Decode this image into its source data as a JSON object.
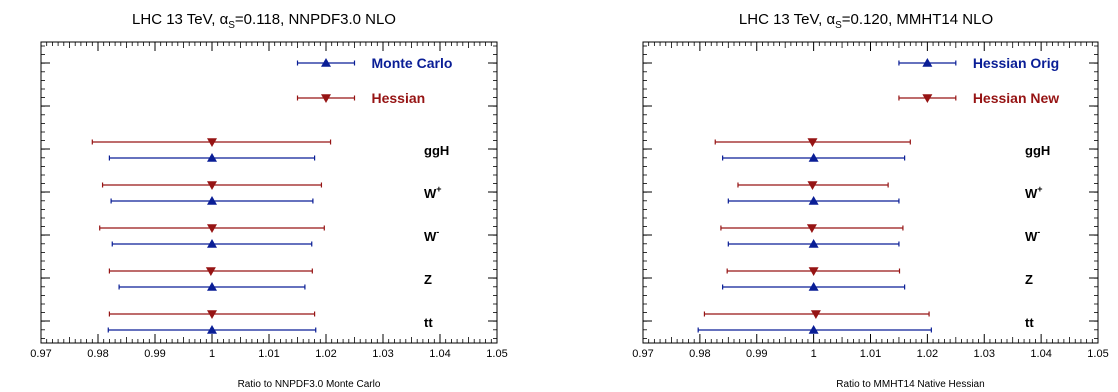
{
  "chart_data": [
    {
      "type": "errorbar",
      "title": "LHC 13 TeV, α",
      "title_sub": "S",
      "title_rest": "=0.118, NNPDF3.0 NLO",
      "xlabel": "Ratio to NNPDF3.0 Monte Carlo",
      "xlim": [
        0.97,
        1.05
      ],
      "x_ticks": [
        "0.97",
        "0.98",
        "0.99",
        "1",
        "1.01",
        "1.02",
        "1.03",
        "1.04",
        "1.05"
      ],
      "processes": [
        {
          "label": "ggH",
          "sup": ""
        },
        {
          "label": "W",
          "sup": "+"
        },
        {
          "label": "W",
          "sup": "-"
        },
        {
          "label": "Z",
          "sup": ""
        },
        {
          "label": "tt",
          "sup": ""
        }
      ],
      "legend_position": "top-right",
      "series": [
        {
          "name": "Monte Carlo",
          "color": "#0a1e96",
          "marker": "triangle-up",
          "points": [
            {
              "center": 1.0,
              "low": 0.982,
              "high": 1.018
            },
            {
              "center": 1.0,
              "low": 0.9823,
              "high": 1.0177
            },
            {
              "center": 1.0,
              "low": 0.9825,
              "high": 1.0175
            },
            {
              "center": 1.0,
              "low": 0.9837,
              "high": 1.0163
            },
            {
              "center": 1.0,
              "low": 0.9818,
              "high": 1.0182
            }
          ]
        },
        {
          "name": "Hessian",
          "color": "#961414",
          "marker": "triangle-down",
          "points": [
            {
              "center": 1.0,
              "low": 0.979,
              "high": 1.0208
            },
            {
              "center": 1.0,
              "low": 0.9808,
              "high": 1.0192
            },
            {
              "center": 1.0,
              "low": 0.9803,
              "high": 1.0197
            },
            {
              "center": 0.9998,
              "low": 0.982,
              "high": 1.0176
            },
            {
              "center": 1.0,
              "low": 0.982,
              "high": 1.018
            }
          ]
        }
      ]
    },
    {
      "type": "errorbar",
      "title": "LHC 13 TeV, α",
      "title_sub": "S",
      "title_rest": "=0.120, MMHT14 NLO",
      "xlabel": "Ratio to MMHT14 Native Hessian",
      "xlim": [
        0.97,
        1.05
      ],
      "x_ticks": [
        "0.97",
        "0.98",
        "0.99",
        "1",
        "1.01",
        "1.02",
        "1.03",
        "1.04",
        "1.05"
      ],
      "processes": [
        {
          "label": "ggH",
          "sup": ""
        },
        {
          "label": "W",
          "sup": "+"
        },
        {
          "label": "W",
          "sup": "-"
        },
        {
          "label": "Z",
          "sup": ""
        },
        {
          "label": "tt",
          "sup": ""
        }
      ],
      "legend_position": "top-right",
      "series": [
        {
          "name": "Hessian Orig",
          "color": "#0a1e96",
          "marker": "triangle-up",
          "points": [
            {
              "center": 1.0,
              "low": 0.984,
              "high": 1.016
            },
            {
              "center": 1.0,
              "low": 0.985,
              "high": 1.015
            },
            {
              "center": 1.0,
              "low": 0.985,
              "high": 1.015
            },
            {
              "center": 1.0,
              "low": 0.984,
              "high": 1.016
            },
            {
              "center": 1.0,
              "low": 0.9797,
              "high": 1.0207
            }
          ]
        },
        {
          "name": "Hessian New",
          "color": "#961414",
          "marker": "triangle-down",
          "points": [
            {
              "center": 0.9998,
              "low": 0.9827,
              "high": 1.017
            },
            {
              "center": 0.9998,
              "low": 0.9867,
              "high": 1.0131
            },
            {
              "center": 0.9997,
              "low": 0.9837,
              "high": 1.0157
            },
            {
              "center": 1.0,
              "low": 0.9848,
              "high": 1.0151
            },
            {
              "center": 1.0004,
              "low": 0.9808,
              "high": 1.0203
            }
          ]
        }
      ]
    }
  ]
}
